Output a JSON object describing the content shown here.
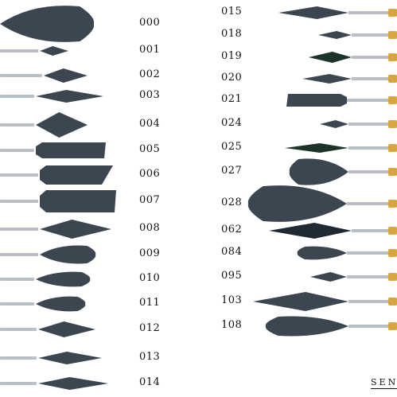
{
  "colors": {
    "blade": "#3b4650",
    "blade_dark": "#1f2a33",
    "blade_green": "#1c3328",
    "handle": "#b9bfc4",
    "ferrule": "#d7a640",
    "text": "#111111"
  },
  "left_column": [
    {
      "code": "000",
      "shape": "trowel-large"
    },
    {
      "code": "001",
      "shape": "diamond-small"
    },
    {
      "code": "002",
      "shape": "diamond"
    },
    {
      "code": "003",
      "shape": "long-diamond"
    },
    {
      "code": "004",
      "shape": "wide-diamond"
    },
    {
      "code": "005",
      "shape": "rectangle"
    },
    {
      "code": "006",
      "shape": "angled-rectangle"
    },
    {
      "code": "007",
      "shape": "rectangle-large"
    },
    {
      "code": "008",
      "shape": "angled-long"
    },
    {
      "code": "009",
      "shape": "teardrop"
    },
    {
      "code": "010",
      "shape": "teardrop"
    },
    {
      "code": "011",
      "shape": "teardrop"
    },
    {
      "code": "012",
      "shape": "notched-diamond"
    },
    {
      "code": "013",
      "shape": "long-leaf"
    },
    {
      "code": "014",
      "shape": "long-leaf"
    }
  ],
  "right_column": [
    {
      "code": "015",
      "shape": "long-trowel"
    },
    {
      "code": "018",
      "shape": "small-diamond"
    },
    {
      "code": "019",
      "shape": "green-diamond"
    },
    {
      "code": "020",
      "shape": "small-diamond"
    },
    {
      "code": "021",
      "shape": "rectangle"
    },
    {
      "code": "024",
      "shape": "tiny-diamond"
    },
    {
      "code": "025",
      "shape": "green-long"
    },
    {
      "code": "027",
      "shape": "teardrop-round"
    },
    {
      "code": "028",
      "shape": "teardrop-large"
    },
    {
      "code": "062",
      "shape": "long-leaf-dark"
    },
    {
      "code": "084",
      "shape": "teardrop"
    },
    {
      "code": "095",
      "shape": "small-diamond"
    },
    {
      "code": "103",
      "shape": "long-leaf"
    },
    {
      "code": "108",
      "shape": "leaf"
    }
  ],
  "brand_text": "SEN"
}
